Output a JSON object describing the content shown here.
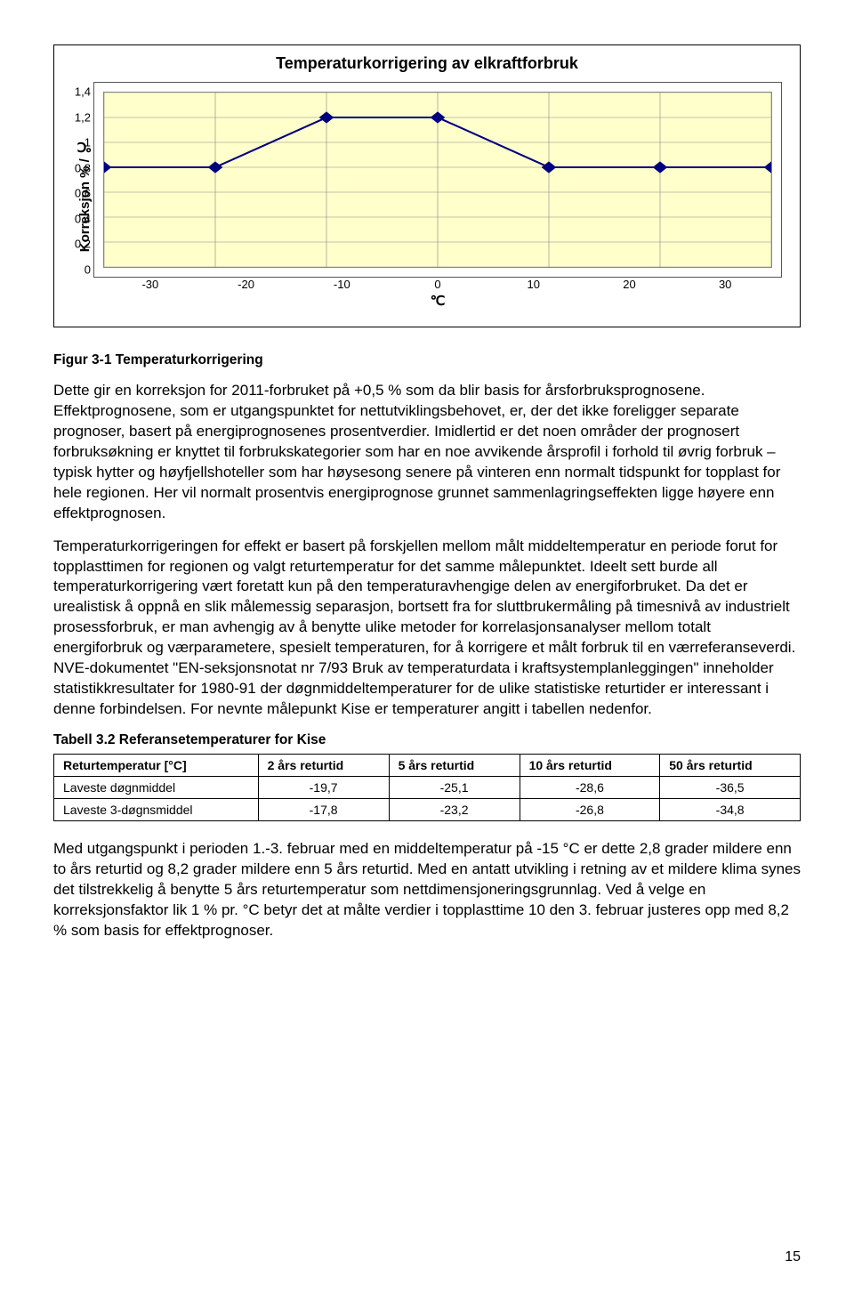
{
  "chart": {
    "type": "line",
    "title": "Temperaturkorrigering av elkraftforbruk",
    "ylabel": "Korreksjon % / ℃",
    "xlabel": "℃",
    "xlim": [
      -30,
      30
    ],
    "ylim": [
      0,
      1.4
    ],
    "xticks": [
      "-30",
      "-20",
      "-10",
      "0",
      "10",
      "20",
      "30"
    ],
    "yticks": [
      "0",
      "0,2",
      "0,4",
      "0,6",
      "0,8",
      "1",
      "1,2",
      "1,4"
    ],
    "series_color": "#000080",
    "marker_shape": "diamond",
    "plot_bg": "#FFFFCC",
    "grid_color": "#888888",
    "points": [
      {
        "x": -30,
        "y": 0.8
      },
      {
        "x": -20,
        "y": 0.8
      },
      {
        "x": -10,
        "y": 1.2
      },
      {
        "x": 0,
        "y": 1.2
      },
      {
        "x": 10,
        "y": 0.8
      },
      {
        "x": 20,
        "y": 0.8
      },
      {
        "x": 30,
        "y": 0.8
      }
    ]
  },
  "figure_caption": "Figur 3-1 Temperaturkorrigering",
  "para1": "Dette gir en korreksjon for 2011-forbruket på +0,5 % som da blir basis for årsforbruks­prognosene. Effektprognosene, som er utgangspunktet for nettutviklingsbehovet, er, der det ikke foreligger separate prognoser, basert på energiprognosenes prosentverdier. Imidlertid er det noen områder der prognosert forbruksøkning er knyttet til forbruks­kategorier som har en noe avvikende årsprofil i forhold til øvrig forbruk – typisk hytter og høyfjellshoteller som har høysesong senere på vinteren enn normalt tidspunkt for topplast for hele regionen. Her vil normalt prosentvis energiprognose grunnet sammenlagrings­effekten ligge høyere enn effektprognosen.",
  "para2": "Temperaturkorrigeringen for effekt er basert på forskjellen mellom målt middeltemperatur en periode forut for topplasttimen for regionen og valgt returtemperatur for det samme målepunktet. Ideelt sett burde all temperaturkorrigering vært foretatt kun på den temperaturavhengige delen av energiforbruket. Da det er urealistisk å oppnå en slik målemessig separasjon, bortsett fra for sluttbrukermåling på timesnivå av industrielt prosessforbruk, er man avhengig av å benytte ulike metoder for korrelasjonsanalyser mellom totalt energiforbruk og værparametere, spesielt temperaturen, for å korrigere et målt forbruk til en værreferanseverdi. NVE-dokumentet \"EN-seksjonsnotat nr 7/93 Bruk av temperaturdata i kraftsystemplanleggingen\" inneholder statistikkresultater for 1980-91 der døgnmiddeltemperaturer for de ulike statistiske returtider er interessant i denne forbindelsen. For nevnte målepunkt Kise er temperaturer angitt i tabellen nedenfor.",
  "table_caption": "Tabell 3.2 Referansetemperaturer for Kise",
  "table": {
    "columns": [
      "Returtemperatur [°C]",
      "2 års returtid",
      "5 års returtid",
      "10 års returtid",
      "50 års returtid"
    ],
    "rows": [
      [
        "Laveste døgnmiddel",
        "-19,7",
        "-25,1",
        "-28,6",
        "-36,5"
      ],
      [
        "Laveste 3-døgnsmiddel",
        "-17,8",
        "-23,2",
        "-26,8",
        "-34,8"
      ]
    ]
  },
  "para3": "Med utgangspunkt i perioden 1.-3. februar med en middeltemperatur på -15 °C er dette 2,8 grader mildere enn to års returtid og 8,2 grader mildere enn 5 års returtid. Med en antatt utvikling i retning av et mildere klima synes det tilstrekkelig å benytte 5 års retur­temperatur som nettdimensjoneringsgrunnlag. Ved å velge en korreksjonsfaktor lik 1 % pr. °C betyr det at målte verdier i topplasttime 10 den 3. februar justeres opp med 8,2 % som basis for effektprognoser.",
  "page_number": "15"
}
